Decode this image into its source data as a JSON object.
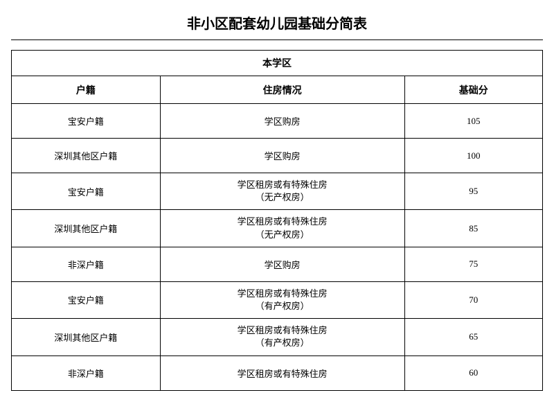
{
  "title": "非小区配套幼儿园基础分简表",
  "section_header": "本学区",
  "columns": {
    "col1": "户籍",
    "col2": "住房情况",
    "col3": "基础分"
  },
  "rows": [
    {
      "huji": "宝安户籍",
      "zhufang": "学区购房",
      "score": "105"
    },
    {
      "huji": "深圳其他区户籍",
      "zhufang": "学区购房",
      "score": "100"
    },
    {
      "huji": "宝安户籍",
      "zhufang": "学区租房或有特殊住房\n（无产权房）",
      "score": "95"
    },
    {
      "huji": "深圳其他区户籍",
      "zhufang": "学区租房或有特殊住房\n（无产权房）",
      "score": "85"
    },
    {
      "huji": "非深户籍",
      "zhufang": "学区购房",
      "score": "75"
    },
    {
      "huji": "宝安户籍",
      "zhufang": "学区租房或有特殊住房\n（有产权房）",
      "score": "70"
    },
    {
      "huji": "深圳其他区户籍",
      "zhufang": "学区租房或有特殊住房\n（有产权房）",
      "score": "65"
    },
    {
      "huji": "非深户籍",
      "zhufang": "学区租房或有特殊住房",
      "score": "60"
    }
  ],
  "styles": {
    "background_color": "#ffffff",
    "border_color": "#000000",
    "text_color": "#000000",
    "title_fontsize": 20,
    "header_fontsize": 14,
    "cell_fontsize": 13,
    "col_widths_pct": [
      28,
      46,
      26
    ]
  }
}
